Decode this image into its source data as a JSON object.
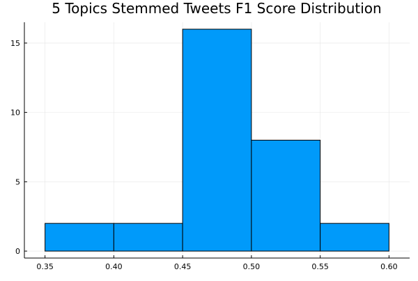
{
  "chart_data": {
    "type": "bar",
    "title": "5 Topics Stemmed Tweets F1 Score Distribution",
    "xlabel": "",
    "ylabel": "",
    "bins": [
      {
        "start": 0.35,
        "end": 0.4,
        "count": 2
      },
      {
        "start": 0.4,
        "end": 0.45,
        "count": 2
      },
      {
        "start": 0.45,
        "end": 0.5,
        "count": 16
      },
      {
        "start": 0.5,
        "end": 0.55,
        "count": 8
      },
      {
        "start": 0.55,
        "end": 0.6,
        "count": 2
      }
    ],
    "x_ticks": [
      "0.35",
      "0.40",
      "0.45",
      "0.50",
      "0.55",
      "0.60"
    ],
    "y_ticks": [
      "0",
      "5",
      "10",
      "15"
    ],
    "xlim": [
      0.335,
      0.615
    ],
    "ylim": [
      -0.5,
      16.5
    ],
    "grid": true,
    "legend": "none",
    "bar_color": "#009AFA",
    "edge_color": "#000000"
  }
}
